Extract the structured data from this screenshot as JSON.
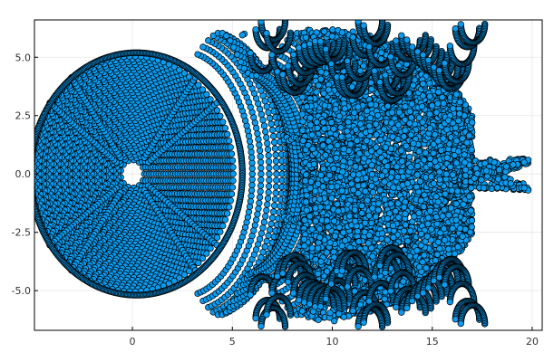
{
  "chart_data": {
    "type": "scatter",
    "title": "",
    "xlabel": "",
    "ylabel": "",
    "xlim": [
      -4.9,
      20.5
    ],
    "ylim": [
      -6.7,
      6.6
    ],
    "grid": true,
    "legend": "none",
    "x_ticks": [
      0,
      5,
      10,
      15,
      20
    ],
    "y_ticks": [
      -5.0,
      -2.5,
      0.0,
      2.5,
      5.0
    ],
    "x_tick_labels": [
      "0",
      "5",
      "10",
      "15",
      "20"
    ],
    "y_tick_labels": [
      "-5.0",
      "-2.5",
      "0.0",
      "2.5",
      "5.0"
    ],
    "marker": {
      "fill": "#0A9BEF",
      "edge": "#000000",
      "shape": "circle"
    },
    "series": [
      {
        "values_description_points": [
          [
            -4.2,
            3.1
          ],
          [
            -3.1,
            4.2
          ],
          [
            -4.2,
            -3.1
          ],
          [
            -3.1,
            -4.2
          ],
          [
            3.2,
            4.2
          ],
          [
            4.3,
            3.1
          ],
          [
            3.2,
            -4.2
          ],
          [
            4.3,
            -3.1
          ],
          [
            -0.8,
            0.5
          ],
          [
            -0.7,
            -0.7
          ],
          [
            0.6,
            0.6
          ],
          [
            0.7,
            -0.6
          ],
          [
            5.6,
            6.0
          ],
          [
            19.8,
            0.6
          ],
          [
            19.8,
            -0.7
          ],
          [
            10.0,
            5.9
          ],
          [
            10.1,
            -6.3
          ],
          [
            9.0,
            1.2
          ],
          [
            9.0,
            -1.9
          ],
          [
            16.5,
            0.0
          ]
        ]
      }
    ]
  }
}
